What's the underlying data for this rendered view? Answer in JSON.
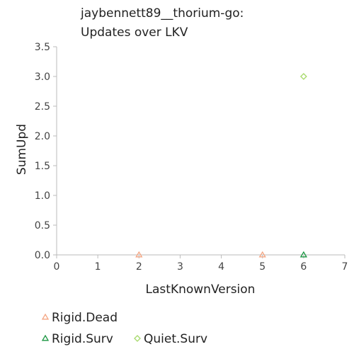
{
  "chart_data": {
    "type": "scatter",
    "title_lines": [
      "jaybennett89__thorium-go:",
      "Updates over LKV"
    ],
    "xlabel": "LastKnownVersion",
    "ylabel": "SumUpd",
    "xlim": [
      0,
      7
    ],
    "ylim": [
      0,
      3.5
    ],
    "x_ticks": [
      0,
      1,
      2,
      3,
      4,
      5,
      6,
      7
    ],
    "y_ticks": [
      0.0,
      0.5,
      1.0,
      1.5,
      2.0,
      2.5,
      3.0,
      3.5
    ],
    "x_tick_labels": [
      "0",
      "1",
      "2",
      "3",
      "4",
      "5",
      "6",
      "7"
    ],
    "y_tick_labels": [
      "0.0",
      "0.5",
      "1.0",
      "1.5",
      "2.0",
      "2.5",
      "3.0",
      "3.5"
    ],
    "grid": false,
    "legend_position": "bottom-left",
    "series": [
      {
        "name": "Rigid.Dead",
        "marker": "triangle",
        "color": "#f4a582",
        "points": [
          {
            "x": 2,
            "y": 0
          },
          {
            "x": 5,
            "y": 0
          }
        ]
      },
      {
        "name": "Rigid.Surv",
        "marker": "triangle",
        "color": "#1a9641",
        "points": [
          {
            "x": 6,
            "y": 0
          }
        ]
      },
      {
        "name": "Quiet.Surv",
        "marker": "diamond",
        "color": "#a6d96a",
        "points": [
          {
            "x": 6,
            "y": 3
          }
        ]
      }
    ]
  }
}
